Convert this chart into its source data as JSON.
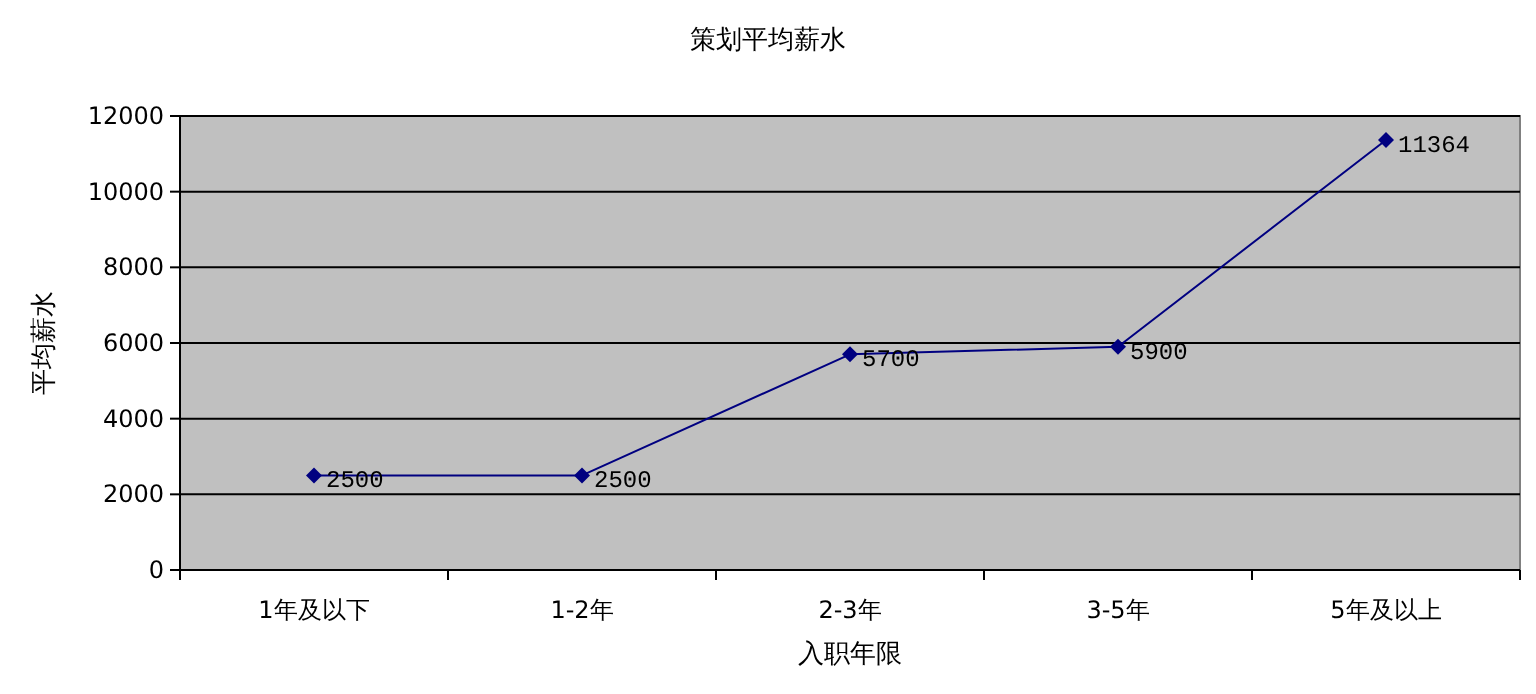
{
  "chart_data": {
    "type": "line",
    "title": "策划平均薪水",
    "xlabel": "入职年限",
    "ylabel": "平均薪水",
    "categories": [
      "1年及以下",
      "1-2年",
      "2-3年",
      "3-5年",
      "5年及以上"
    ],
    "values": [
      2500,
      2500,
      5700,
      5900,
      11364
    ],
    "color": "#000080",
    "ylim": [
      0,
      12000
    ],
    "yticks": [
      0,
      2000,
      4000,
      6000,
      8000,
      10000,
      12000
    ],
    "grid": "y",
    "marker": "diamond",
    "line_style": "solid",
    "data_labels": true
  }
}
